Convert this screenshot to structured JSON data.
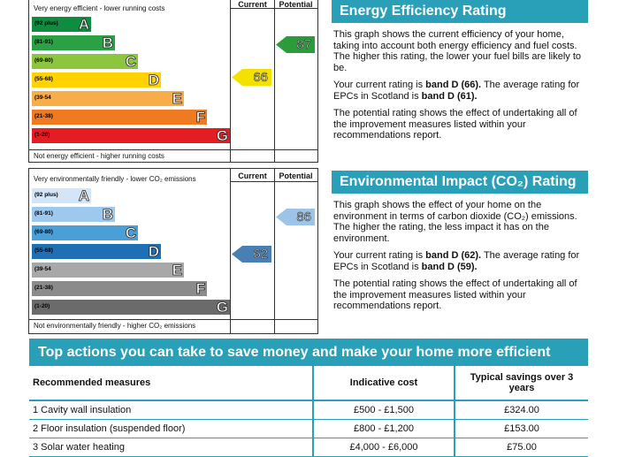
{
  "energy_chart": {
    "top_label": "Very energy efficient - lower running costs",
    "bottom_label": "Not energy efficient - higher running costs",
    "current_header": "Current",
    "potential_header": "Potential",
    "current": "66",
    "potential": "87",
    "current_color": "#f5e100",
    "potential_color": "#2a9d3a",
    "bands": [
      {
        "range": "(92 plus)",
        "letter": "A",
        "color": "#0f8c3f"
      },
      {
        "range": "(81-91)",
        "letter": "B",
        "color": "#2ba045"
      },
      {
        "range": "(69-80)",
        "letter": "C",
        "color": "#8cc63e"
      },
      {
        "range": "(55-68)",
        "letter": "D",
        "color": "#ffd200"
      },
      {
        "range": "(39-54",
        "letter": "E",
        "color": "#f7ad4a"
      },
      {
        "range": "(21-38)",
        "letter": "F",
        "color": "#ef7a22"
      },
      {
        "range": "(1-20)",
        "letter": "G",
        "color": "#e31d23"
      }
    ]
  },
  "env_chart": {
    "top_label": "Very environmentally friendly - lower CO₂ emissions",
    "bottom_label": "Not environmentally friendly - higher CO₂ emissions",
    "current_header": "Current",
    "potential_header": "Potential",
    "current": "62",
    "potential": "86",
    "current_color": "#4a7fb5",
    "potential_color": "#9cc3e8",
    "bands": [
      {
        "range": "(92 plus)",
        "letter": "A",
        "color": "#d3e6f7"
      },
      {
        "range": "(81-91)",
        "letter": "B",
        "color": "#9ec9ee"
      },
      {
        "range": "(69-80)",
        "letter": "C",
        "color": "#4aa0d6"
      },
      {
        "range": "(55-68)",
        "letter": "D",
        "color": "#1e6fb3"
      },
      {
        "range": "(39-54",
        "letter": "E",
        "color": "#a8a8a8"
      },
      {
        "range": "(21-38)",
        "letter": "F",
        "color": "#8b8b8b"
      },
      {
        "range": "(1-20)",
        "letter": "G",
        "color": "#6b6b6b"
      }
    ]
  },
  "energy_panel": {
    "title": "Energy Efficiency Rating",
    "p1": "This graph shows the current efficiency of your home, taking into account both energy efficiency and fuel costs. The higher this rating, the lower your fuel bills are likely to be.",
    "p2_pre": "Your current rating is ",
    "p2_b1": "band D (66).",
    "p2_mid": " The average rating for EPCs in Scotland is ",
    "p2_b2": "band D (61).",
    "p3": "The potential rating shows the effect of undertaking all of the improvement measures listed within your recommendations report."
  },
  "env_panel": {
    "title": "Environmental Impact (CO₂) Rating",
    "p1": "This graph shows the effect of your home on the environment in terms of carbon dioxide (CO₂) emissions. The higher the rating, the less impact it has on the environment.",
    "p2_pre": "Your current rating is ",
    "p2_b1": "band D (62).",
    "p2_mid": " The average rating for EPCs in Scotland is ",
    "p2_b2": "band D (59).",
    "p3": "The potential rating shows the effect of undertaking all of the improvement measures listed within your recommendations report."
  },
  "actions": {
    "title": "Top actions you can take to save money and make your home more efficient",
    "headers": [
      "Recommended measures",
      "Indicative cost",
      "Typical savings over 3 years"
    ],
    "rows": [
      [
        "1 Cavity wall insulation",
        "£500 - £1,500",
        "£324.00"
      ],
      [
        "2 Floor insulation (suspended floor)",
        "£800 - £1,200",
        "£153.00"
      ],
      [
        "3 Solar water heating",
        "£4,000 - £6,000",
        "£75.00"
      ]
    ]
  }
}
